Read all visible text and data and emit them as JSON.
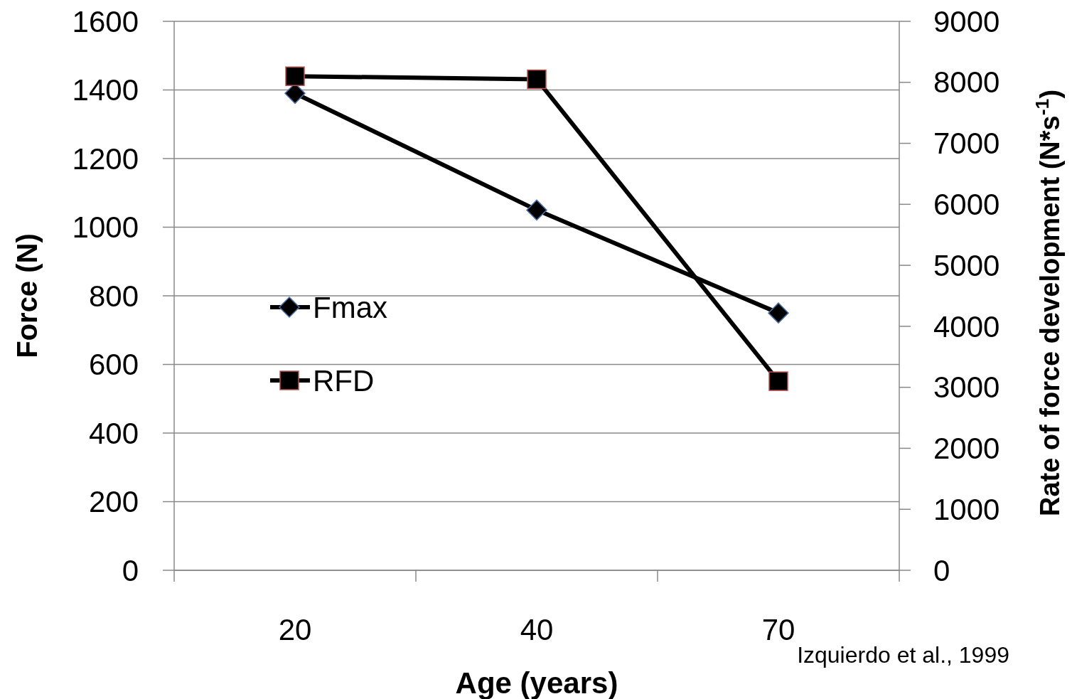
{
  "chart_data": {
    "type": "line",
    "xlabel": "Age (years)",
    "ylabel": "Force  (N)",
    "y2label": "Rate of force development (N*s$^{-1}$)",
    "categories": [
      "20",
      "40",
      "70"
    ],
    "ylim": [
      0,
      1600
    ],
    "yticks": [
      0,
      200,
      400,
      600,
      800,
      1000,
      1200,
      1400,
      1600
    ],
    "y2lim": [
      0,
      9000
    ],
    "y2ticks": [
      0,
      1000,
      2000,
      3000,
      4000,
      5000,
      6000,
      7000,
      8000,
      9000
    ],
    "grid": "y",
    "legend": "left",
    "line_style": "solid",
    "series": [
      {
        "name": "Fmax",
        "color": "#000000",
        "marker": "diamond",
        "values": [
          1390,
          1050,
          750
        ]
      },
      {
        "name": "RFD",
        "color": "#000000",
        "marker": "square",
        "axis": "y2",
        "values": [
          8100,
          8050,
          3100
        ]
      }
    ],
    "annotations": [
      "Izquierdo et al., 1999"
    ]
  }
}
